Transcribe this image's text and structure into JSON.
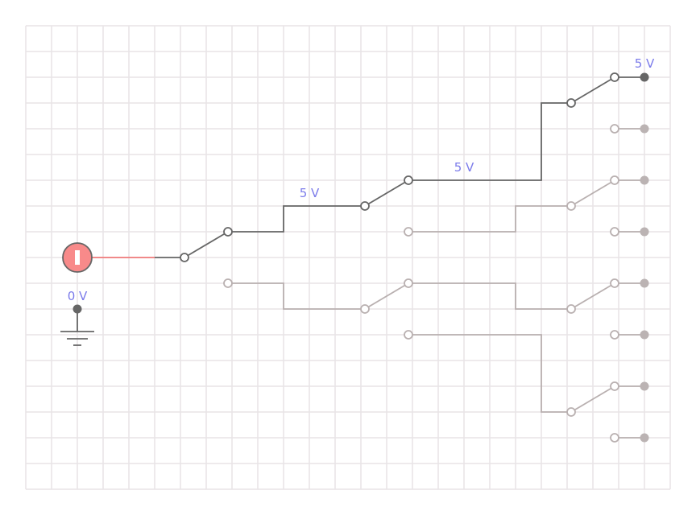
{
  "colors": {
    "active_wire": "#666666",
    "inactive_wire": "#b9b0b0",
    "source_wire": "#f07a7a",
    "source_fill": "#f88a8a",
    "voltage_label": "#7b7bea",
    "grid": "#e8e4e6"
  },
  "source": {
    "icon": "power-source-icon",
    "state": "on"
  },
  "ground": {
    "icon": "ground-icon",
    "voltage_label": "0 V"
  },
  "wire_labels": {
    "switch1_out": "5 V",
    "switch2_out": "5 V",
    "output_top": "5 V"
  },
  "switches": [
    {
      "name": "switch-1",
      "state": "up"
    },
    {
      "name": "switch-2-upper",
      "state": "up"
    },
    {
      "name": "switch-2-lower",
      "state": "up"
    },
    {
      "name": "switch-3-a",
      "state": "up"
    },
    {
      "name": "switch-3-b",
      "state": "up"
    },
    {
      "name": "switch-3-c",
      "state": "up"
    },
    {
      "name": "switch-3-d",
      "state": "up"
    }
  ],
  "outputs": [
    {
      "active": true
    },
    {
      "active": false
    },
    {
      "active": false
    },
    {
      "active": false
    },
    {
      "active": false
    },
    {
      "active": false
    },
    {
      "active": false
    },
    {
      "active": false
    }
  ]
}
